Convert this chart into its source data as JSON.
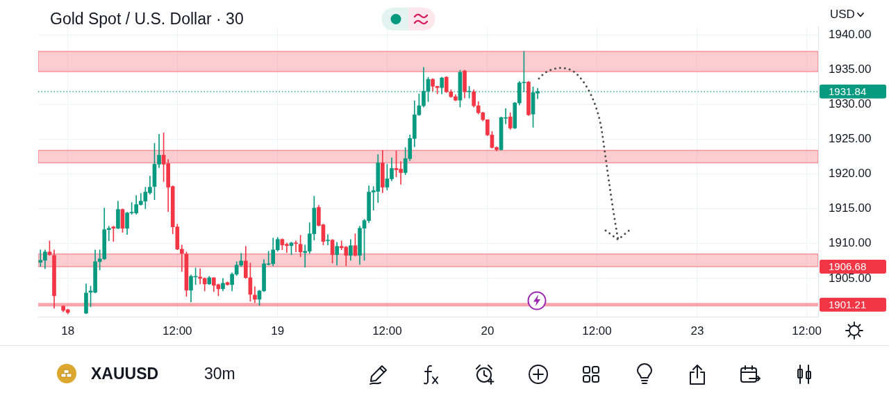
{
  "chart_data": {
    "type": "candlestick",
    "title": "Gold Spot / U.S. Dollar · 30",
    "ylabel": "USD",
    "categories": [
      null,
      null,
      null,
      null,
      null,
      null,
      "18",
      null,
      null,
      null,
      null,
      null,
      null,
      null,
      null,
      null,
      null,
      null,
      null,
      null,
      null,
      null,
      null,
      null,
      null,
      null,
      null,
      null,
      null,
      null,
      "12:00",
      null,
      null,
      null,
      null,
      null,
      null,
      null,
      null,
      null,
      null,
      null,
      null,
      null,
      null,
      null,
      null,
      null,
      null,
      null,
      null,
      null,
      "19",
      null,
      null,
      null,
      null,
      null,
      null,
      null,
      null,
      null,
      null,
      null,
      null,
      null,
      null,
      null,
      null,
      null,
      null,
      null,
      null,
      null,
      null,
      null,
      "12:00",
      null,
      null,
      null,
      null,
      null,
      null,
      null,
      null,
      null,
      null,
      null,
      null,
      null,
      null,
      null,
      null,
      null,
      null,
      null,
      null,
      null,
      "20",
      null,
      null,
      null,
      null,
      null,
      null,
      null,
      null,
      null,
      null,
      null,
      null,
      null,
      null,
      null,
      null,
      null,
      null,
      null,
      null,
      null,
      null,
      null,
      "12:00",
      null,
      null,
      null,
      null,
      null,
      null,
      null,
      null,
      null,
      null,
      null,
      null,
      null,
      null,
      null,
      null,
      null,
      null,
      null,
      null,
      null,
      "23",
      null,
      null,
      null,
      null,
      null,
      null,
      null,
      null,
      null,
      null,
      null,
      null,
      null,
      null,
      null,
      null,
      null,
      null,
      null,
      null,
      null,
      null,
      null,
      "12:00",
      null,
      null
    ],
    "ohlc": [
      [
        1907.3,
        1909.1,
        1906.7,
        1907.6
      ],
      [
        1907.6,
        1909.1,
        1906.4,
        1908.8
      ],
      [
        1908.8,
        1910.4,
        1908.3,
        1908.4
      ],
      [
        1908.3,
        1909.1,
        1900.7,
        1902.5
      ],
      null,
      [
        1901.0,
        1901.1,
        1900.2,
        1900.4
      ],
      [
        1900.5,
        1900.6,
        1899.9,
        1900.1
      ],
      null,
      null,
      null,
      [
        1900.0,
        1904.2,
        1899.9,
        1902.9
      ],
      [
        1903.0,
        1903.9,
        1900.9,
        1903.2
      ],
      [
        1903.0,
        1909.1,
        1902.9,
        1907.4
      ],
      [
        1907.4,
        1909.1,
        1906.2,
        1907.8
      ],
      [
        1907.8,
        1915.1,
        1907.7,
        1912.0
      ],
      [
        1912.0,
        1912.5,
        1910.4,
        1912.2
      ],
      [
        1912.4,
        1912.5,
        1910.3,
        1912.2
      ],
      [
        1912.2,
        1916.1,
        1912.1,
        1914.9
      ],
      [
        1914.9,
        1915.0,
        1911.6,
        1912.2
      ],
      [
        1912.2,
        1914.5,
        1911.3,
        1914.4
      ],
      [
        1914.4,
        1915.9,
        1914.2,
        1914.5
      ],
      [
        1914.4,
        1916.9,
        1914.2,
        1915.6
      ],
      [
        1915.6,
        1917.2,
        1915.5,
        1916.1
      ],
      [
        1916.1,
        1918.1,
        1915.0,
        1917.4
      ],
      [
        1917.3,
        1919.7,
        1917.1,
        1918.1
      ],
      [
        1918.2,
        1924.4,
        1916.3,
        1921.4
      ],
      [
        1921.4,
        1925.7,
        1920.9,
        1922.7
      ],
      [
        1922.7,
        1925.9,
        1918.9,
        1921.4
      ],
      [
        1921.5,
        1922.1,
        1914.6,
        1918.1
      ],
      [
        1918.2,
        1918.3,
        1911.4,
        1912.4
      ],
      [
        1912.4,
        1912.8,
        1909.1,
        1909.2
      ],
      [
        1909.2,
        1909.8,
        1906.0,
        1908.6
      ],
      [
        1908.5,
        1908.8,
        1902.4,
        1903.3
      ],
      [
        1903.3,
        1905.5,
        1901.6,
        1905.3
      ],
      [
        1905.2,
        1906.5,
        1904.1,
        1905.3
      ],
      [
        1905.2,
        1906.4,
        1904.2,
        1905.0
      ],
      [
        1905.0,
        1905.1,
        1903.2,
        1904.2
      ],
      [
        1904.2,
        1905.3,
        1904.1,
        1905.1
      ],
      [
        1905.1,
        1905.1,
        1903.1,
        1904.0
      ],
      [
        1904.1,
        1904.2,
        1902.5,
        1903.5
      ],
      [
        1903.5,
        1905.0,
        1903.2,
        1904.3
      ],
      [
        1904.4,
        1904.5,
        1904.0,
        1904.1
      ],
      [
        1904.1,
        1905.8,
        1903.2,
        1905.6
      ],
      [
        1905.6,
        1907.4,
        1905.4,
        1906.9
      ],
      [
        1906.9,
        1908.6,
        1906.7,
        1907.5
      ],
      [
        1907.5,
        1909.6,
        1905.0,
        1905.1
      ],
      [
        1905.1,
        1907.2,
        1901.7,
        1902.7
      ],
      [
        1902.6,
        1903.8,
        1901.5,
        1902.0
      ],
      [
        1902.0,
        1903.3,
        1901.1,
        1903.2
      ],
      [
        1903.2,
        1907.7,
        1903.1,
        1907.1
      ],
      [
        1907.0,
        1908.9,
        1906.9,
        1907.1
      ],
      [
        1907.1,
        1910.8,
        1906.8,
        1909.1
      ],
      [
        1909.1,
        1910.9,
        1908.9,
        1910.6
      ],
      [
        1910.6,
        1910.7,
        1909.1,
        1909.8
      ],
      [
        1909.9,
        1910.1,
        1908.7,
        1909.7
      ],
      [
        1909.7,
        1910.2,
        1908.4,
        1910.1
      ],
      [
        1910.1,
        1910.4,
        1908.8,
        1910.0
      ],
      [
        1909.9,
        1911.2,
        1908.1,
        1908.8
      ],
      [
        1908.7,
        1909.8,
        1906.6,
        1908.9
      ],
      [
        1908.9,
        1913.0,
        1908.6,
        1911.4
      ],
      [
        1911.4,
        1916.8,
        1910.5,
        1915.1
      ],
      [
        1915.2,
        1915.5,
        1912.5,
        1912.6
      ],
      [
        1912.7,
        1912.8,
        1909.8,
        1910.3
      ],
      [
        1910.4,
        1911.3,
        1909.8,
        1910.5
      ],
      [
        1910.5,
        1910.6,
        1907.2,
        1908.4
      ],
      [
        1908.4,
        1910.2,
        1906.9,
        1909.6
      ],
      [
        1909.6,
        1910.4,
        1909.1,
        1909.4
      ],
      [
        1909.5,
        1909.6,
        1906.8,
        1908.3
      ],
      [
        1908.3,
        1910.6,
        1907.6,
        1909.7
      ],
      [
        1909.7,
        1911.4,
        1908.2,
        1908.3
      ],
      [
        1908.3,
        1912.5,
        1907.0,
        1912.2
      ],
      [
        1912.2,
        1913.5,
        1907.6,
        1913.3
      ],
      [
        1913.3,
        1918.3,
        1913.0,
        1917.4
      ],
      [
        1917.4,
        1918.2,
        1914.8,
        1917.6
      ],
      [
        1917.5,
        1922.8,
        1915.9,
        1921.6
      ],
      [
        1921.6,
        1923.4,
        1917.3,
        1918.1
      ],
      [
        1918.1,
        1921.4,
        1917.7,
        1919.3
      ],
      [
        1919.3,
        1922.3,
        1919.0,
        1920.8
      ],
      [
        1920.8,
        1923.3,
        1919.6,
        1920.6
      ],
      [
        1920.7,
        1921.8,
        1918.5,
        1920.2
      ],
      [
        1920.2,
        1923.8,
        1919.9,
        1922.2
      ],
      [
        1922.2,
        1925.6,
        1921.9,
        1925.1
      ],
      [
        1925.1,
        1930.5,
        1923.9,
        1928.5
      ],
      [
        1928.5,
        1931.5,
        1928.4,
        1929.8
      ],
      [
        1929.8,
        1935.3,
        1929.6,
        1931.9
      ],
      [
        1931.9,
        1933.9,
        1930.4,
        1933.6
      ],
      [
        1933.6,
        1933.7,
        1931.9,
        1932.6
      ],
      [
        1932.6,
        1932.6,
        1931.5,
        1932.4
      ],
      [
        1932.4,
        1933.9,
        1931.5,
        1933.8
      ],
      [
        1933.9,
        1934.0,
        1931.7,
        1931.8
      ],
      [
        1931.8,
        1932.1,
        1931.0,
        1931.1
      ],
      [
        1931.1,
        1931.4,
        1930.5,
        1930.6
      ],
      [
        1930.6,
        1934.9,
        1929.6,
        1934.6
      ],
      [
        1934.8,
        1934.9,
        1930.9,
        1931.8
      ],
      [
        1931.8,
        1932.6,
        1930.9,
        1931.9
      ],
      [
        1931.8,
        1932.1,
        1929.6,
        1929.8
      ],
      [
        1929.8,
        1930.4,
        1928.6,
        1928.8
      ],
      [
        1928.8,
        1928.9,
        1927.6,
        1927.8
      ],
      [
        1927.8,
        1927.8,
        1925.5,
        1925.6
      ],
      [
        1925.6,
        1926.1,
        1923.7,
        1923.8
      ],
      [
        1923.8,
        1923.9,
        1923.3,
        1923.5
      ],
      [
        1923.5,
        1928.2,
        1923.4,
        1928.1
      ],
      [
        1928.0,
        1929.4,
        1927.2,
        1928.1
      ],
      [
        1928.2,
        1928.8,
        1926.4,
        1926.6
      ],
      [
        1926.6,
        1930.3,
        1926.5,
        1930.2
      ],
      [
        1930.2,
        1933.3,
        1929.9,
        1933.1
      ],
      [
        1933.1,
        1937.6,
        1931.8,
        1933.2
      ],
      [
        1933.2,
        1933.3,
        1928.4,
        1928.5
      ],
      [
        1928.6,
        1932.5,
        1926.7,
        1931.7
      ],
      [
        1931.6,
        1932.3,
        1930.8,
        1931.84
      ],
      null,
      null,
      null,
      null,
      null,
      null,
      null,
      null,
      null,
      null,
      null,
      null,
      null,
      null,
      null,
      null,
      null,
      null,
      null,
      null,
      null,
      null,
      null,
      null,
      null,
      null,
      null,
      null,
      null,
      null,
      null,
      null,
      null,
      null,
      null,
      null,
      null,
      null,
      null,
      null,
      null,
      null,
      null,
      null,
      null,
      null,
      null,
      null,
      null,
      null,
      null,
      null,
      null,
      null,
      null,
      null,
      null,
      null,
      null,
      null,
      null
    ],
    "ylim": [
      1899.5,
      1941.2
    ],
    "yticks": [
      {
        "value": 1905,
        "label": "1905.00"
      },
      {
        "value": 1910,
        "label": "1910.00"
      },
      {
        "value": 1915,
        "label": "1915.00"
      },
      {
        "value": 1920,
        "label": "1920.00"
      },
      {
        "value": 1925,
        "label": "1925.00"
      },
      {
        "value": 1930,
        "label": "1930.00"
      },
      {
        "value": 1935,
        "label": "1935.00"
      },
      {
        "value": 1940,
        "label": "1940.00"
      }
    ],
    "grid": true,
    "bands": [
      {
        "axis": "y",
        "from": 1934.7,
        "to": 1937.6,
        "color": "#f23645"
      },
      {
        "axis": "y",
        "from": 1921.6,
        "to": 1923.4,
        "color": "#f23645"
      },
      {
        "axis": "y",
        "from": 1906.68,
        "to": 1908.5,
        "label": "1906.68",
        "color": "#f23645"
      }
    ],
    "ref_lines": [
      {
        "axis": "y",
        "value": 1931.84,
        "label": "1931.84",
        "color": "#089981",
        "line_style": "dotted"
      },
      {
        "axis": "y",
        "value": 1901.21,
        "label": "1901.21",
        "color": "#f23645"
      }
    ],
    "annotations": [
      "XAUUSD",
      "30m"
    ]
  }
}
